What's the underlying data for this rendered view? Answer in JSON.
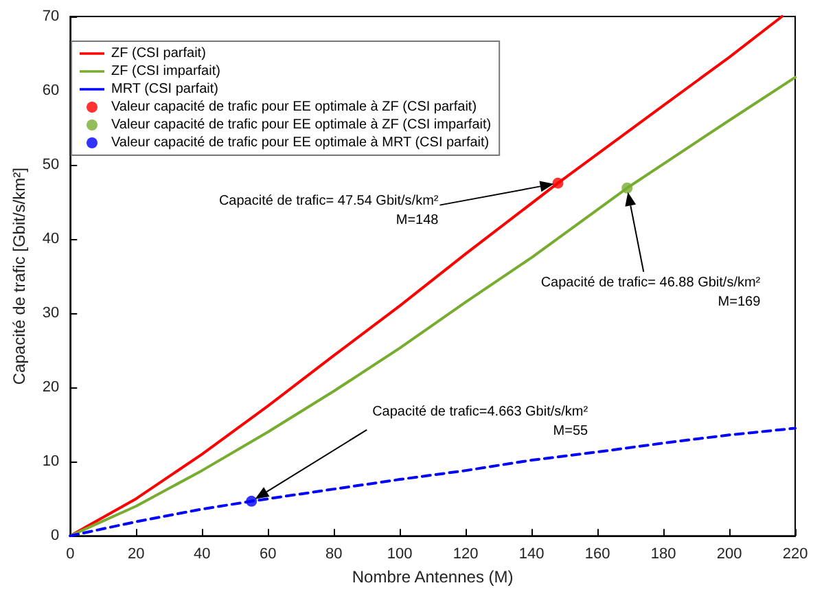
{
  "chart_data": {
    "type": "line",
    "xlabel": "Nombre Antennes (M)",
    "ylabel": "Capacité de trafic [Gbit/s/km²]",
    "xlim": [
      0,
      220
    ],
    "xticks": [
      0,
      20,
      40,
      60,
      80,
      100,
      120,
      140,
      160,
      180,
      200,
      220
    ],
    "ylim": [
      0,
      70
    ],
    "yticks": [
      0,
      10,
      20,
      30,
      40,
      50,
      60,
      70
    ],
    "grid": false,
    "legend": "top left",
    "marker": "none",
    "series": [
      {
        "name": "ZF (CSI parfait)",
        "color": "#ff0000",
        "x": [
          0,
          20,
          40,
          60,
          80,
          100,
          120,
          148,
          180,
          200,
          216
        ],
        "values": [
          0,
          5,
          11,
          17.5,
          24.3,
          31,
          38,
          47.54,
          58,
          64.5,
          70
        ]
      },
      {
        "name": "ZF (CSI imparfait)",
        "color": "#77ac30",
        "x": [
          0,
          20,
          40,
          60,
          80,
          100,
          120,
          140,
          169,
          200,
          220
        ],
        "values": [
          0,
          4,
          8.8,
          14,
          19.5,
          25.3,
          31.5,
          37.5,
          46.88,
          56,
          61.8
        ]
      },
      {
        "name": "MRT (CSI parfait)",
        "color": "#0000ff",
        "line_style": "dashed",
        "x": [
          0,
          20,
          40,
          55,
          80,
          100,
          120,
          140,
          160,
          180,
          200,
          220
        ],
        "values": [
          0,
          1.9,
          3.6,
          4.663,
          6.3,
          7.6,
          8.8,
          10.2,
          11.3,
          12.5,
          13.6,
          14.5
        ]
      },
      {
        "name": "Valeur capacité de trafic pour EE optimale à ZF (CSI parfait)",
        "type": "scatter",
        "marker": "circle",
        "color": "#ff0000",
        "x": [
          148
        ],
        "values": [
          47.54
        ]
      },
      {
        "name": "Valeur capacité de trafic pour EE optimale à ZF (CSI imparfait)",
        "type": "scatter",
        "marker": "circle",
        "color": "#77ac30",
        "x": [
          169
        ],
        "values": [
          46.88
        ]
      },
      {
        "name": "Valeur capacité de trafic pour EE optimale à MRT (CSI parfait)",
        "type": "scatter",
        "marker": "circle",
        "color": "#0000ff",
        "x": [
          55
        ],
        "values": [
          4.663
        ]
      }
    ],
    "annotations": [
      "Capacité de trafic= 47.54 Gbit/s/km²\nM=148",
      "Capacité de trafic= 46.88 Gbit/s/km²\nM=169",
      "Capacité de trafic=4.663 Gbit/s/km²\nM=55"
    ]
  }
}
